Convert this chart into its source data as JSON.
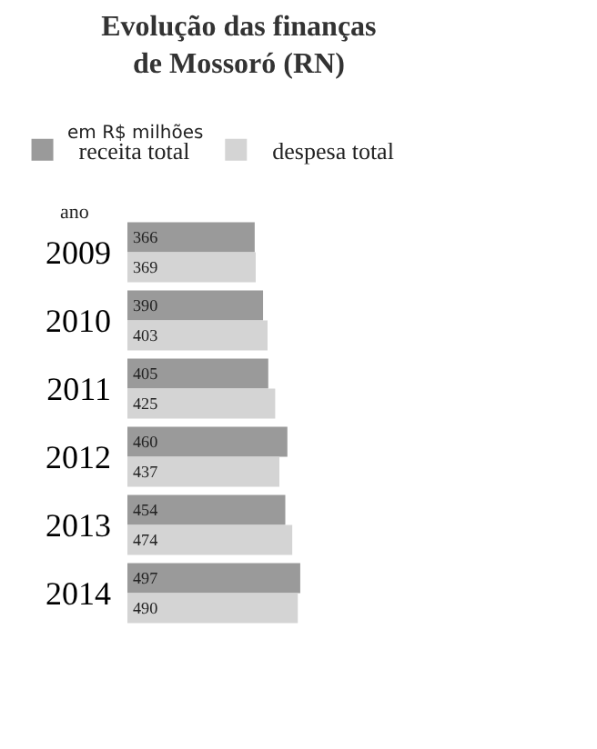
{
  "chart_data": {
    "type": "bar",
    "orientation": "horizontal",
    "title": "Evolução das finanças\nde Mossoró (RN)",
    "subtitle": "em R$ milhões",
    "ylabel": "ano",
    "categories": [
      "2009",
      "2010",
      "2011",
      "2012",
      "2013",
      "2014"
    ],
    "series": [
      {
        "name": "receita total",
        "color": "#9a9a9a",
        "values": [
          366,
          390,
          405,
          460,
          454,
          497
        ]
      },
      {
        "name": "despesa total",
        "color": "#d4d4d4",
        "values": [
          369,
          403,
          425,
          437,
          474,
          490
        ]
      }
    ],
    "data_labels": true,
    "legend": "top left",
    "tick_labels": "y"
  }
}
